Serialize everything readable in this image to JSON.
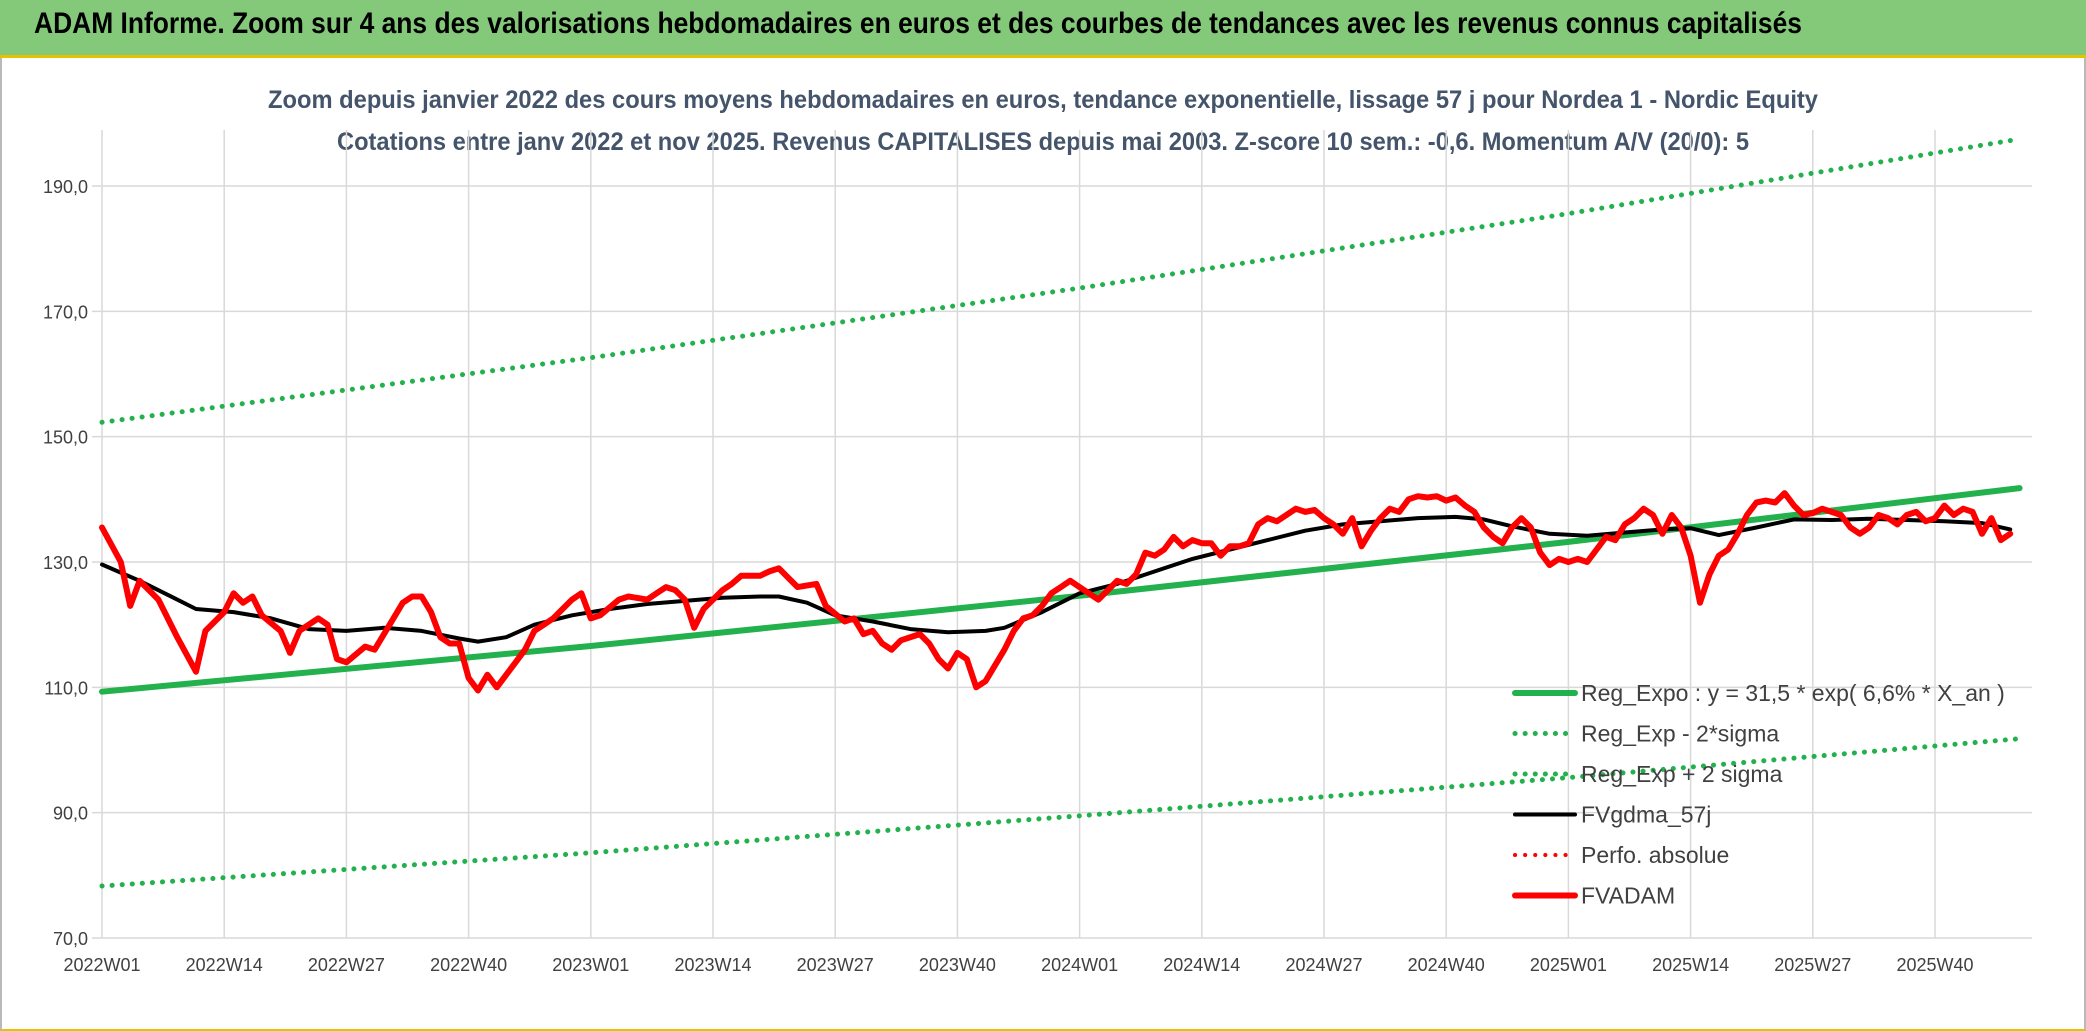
{
  "banner": {
    "title": "ADAM Informe. Zoom sur 4 ans des valorisations hebdomadaires en euros et des courbes de tendances avec les revenus connus capitalisés"
  },
  "chart_data": {
    "type": "line",
    "title": "Zoom depuis janvier 2022 des cours moyens hebdomadaires en euros, tendance exponentielle, lissage 57 j pour Nordea 1 - Nordic Equity",
    "subtitle": "Cotations entre janv 2022 et nov 2025. Revenus CAPITALISES depuis mai 2003. Z-score 10 sem.: -0,6. Momentum A/V (20/0): 5",
    "xlabel": "",
    "ylabel": "",
    "ylim": [
      70,
      200
    ],
    "yticks": [
      "70,0",
      "90,0",
      "110,0",
      "130,0",
      "150,0",
      "170,0",
      "190,0"
    ],
    "ytick_values": [
      70,
      90,
      110,
      130,
      150,
      170,
      190
    ],
    "x_range": [
      1,
      204
    ],
    "xticks": [
      {
        "label": "2022W01",
        "x": 1
      },
      {
        "label": "2022W14",
        "x": 14
      },
      {
        "label": "2022W27",
        "x": 27
      },
      {
        "label": "2022W40",
        "x": 40
      },
      {
        "label": "2023W01",
        "x": 53
      },
      {
        "label": "2023W14",
        "x": 66
      },
      {
        "label": "2023W27",
        "x": 79
      },
      {
        "label": "2023W40",
        "x": 92
      },
      {
        "label": "2024W01",
        "x": 105
      },
      {
        "label": "2024W14",
        "x": 118
      },
      {
        "label": "2024W27",
        "x": 131
      },
      {
        "label": "2024W40",
        "x": 144
      },
      {
        "label": "2025W01",
        "x": 157
      },
      {
        "label": "2025W14",
        "x": 170
      },
      {
        "label": "2025W27",
        "x": 183
      },
      {
        "label": "2025W40",
        "x": 196
      }
    ],
    "grid": true,
    "legend_position": "bottom-right",
    "series": [
      {
        "name": "Reg_Expo : y = 31,5 * exp( 6,6% *  X_an )",
        "color": "#22b14c",
        "style": "solid",
        "width": 6,
        "points": [
          [
            1,
            109.3
          ],
          [
            53,
            116.6
          ],
          [
            105,
            124.6
          ],
          [
            157,
            133.2
          ],
          [
            205,
            141.8
          ]
        ]
      },
      {
        "name": "Reg_Exp - 2*sigma",
        "color": "#22b14c",
        "style": "dotted",
        "width": 5,
        "points": [
          [
            1,
            78.3
          ],
          [
            53,
            83.6
          ],
          [
            105,
            89.5
          ],
          [
            157,
            95.6
          ],
          [
            205,
            101.8
          ]
        ]
      },
      {
        "name": "Reg_Exp + 2 sigma",
        "color": "#22b14c",
        "style": "dotted",
        "width": 5,
        "points": [
          [
            1,
            152.3
          ],
          [
            53,
            162.6
          ],
          [
            105,
            173.7
          ],
          [
            157,
            185.6
          ],
          [
            205,
            197.5
          ]
        ]
      },
      {
        "name": "FVgdma_57j",
        "color": "#000000",
        "style": "solid",
        "width": 4,
        "points": [
          [
            1,
            129.6
          ],
          [
            5,
            127
          ],
          [
            9,
            124
          ],
          [
            11,
            122.5
          ],
          [
            15,
            122
          ],
          [
            19,
            121
          ],
          [
            23,
            119.3
          ],
          [
            27,
            119
          ],
          [
            31,
            119.5
          ],
          [
            35,
            119
          ],
          [
            39,
            117.8
          ],
          [
            41,
            117.3
          ],
          [
            44,
            118
          ],
          [
            47,
            120
          ],
          [
            51,
            121.5
          ],
          [
            55,
            122.5
          ],
          [
            59,
            123.3
          ],
          [
            63,
            123.8
          ],
          [
            67,
            124.3
          ],
          [
            71,
            124.5
          ],
          [
            73,
            124.5
          ],
          [
            76,
            123.5
          ],
          [
            79,
            121.5
          ],
          [
            83,
            120.5
          ],
          [
            87,
            119.3
          ],
          [
            91,
            118.8
          ],
          [
            95,
            119
          ],
          [
            97,
            119.5
          ],
          [
            101,
            122
          ],
          [
            105,
            125
          ],
          [
            109,
            126.5
          ],
          [
            113,
            128.5
          ],
          [
            117,
            130.5
          ],
          [
            121,
            132
          ],
          [
            125,
            133.5
          ],
          [
            129,
            135
          ],
          [
            133,
            136
          ],
          [
            137,
            136.5
          ],
          [
            141,
            137
          ],
          [
            145,
            137.2
          ],
          [
            148,
            136.8
          ],
          [
            151,
            135.7
          ],
          [
            155,
            134.5
          ],
          [
            159,
            134.2
          ],
          [
            163,
            134.7
          ],
          [
            167,
            135.2
          ],
          [
            170,
            135.4
          ],
          [
            173,
            134.3
          ],
          [
            177,
            135.5
          ],
          [
            181,
            136.8
          ],
          [
            185,
            136.7
          ],
          [
            189,
            136.9
          ],
          [
            193,
            136.7
          ],
          [
            197,
            136.5
          ],
          [
            201,
            136.2
          ],
          [
            204,
            135.2
          ]
        ]
      },
      {
        "name": "Perfo. absolue",
        "color": "#ff0000",
        "style": "dotted",
        "width": 4,
        "points": []
      },
      {
        "name": "FVADAM",
        "color": "#ff0000",
        "style": "solid",
        "width": 6,
        "points": [
          [
            1,
            135.5
          ],
          [
            3,
            130
          ],
          [
            4,
            123
          ],
          [
            5,
            127
          ],
          [
            7,
            124
          ],
          [
            9,
            118
          ],
          [
            11,
            112.5
          ],
          [
            12,
            119
          ],
          [
            14,
            122
          ],
          [
            15,
            125
          ],
          [
            16,
            123.5
          ],
          [
            17,
            124.5
          ],
          [
            18,
            121.5
          ],
          [
            20,
            119
          ],
          [
            21,
            115.5
          ],
          [
            22,
            119
          ],
          [
            24,
            121
          ],
          [
            25,
            120
          ],
          [
            26,
            114.5
          ],
          [
            27,
            114
          ],
          [
            29,
            116.5
          ],
          [
            30,
            116
          ],
          [
            32,
            121
          ],
          [
            33,
            123.5
          ],
          [
            34,
            124.5
          ],
          [
            35,
            124.5
          ],
          [
            36,
            122
          ],
          [
            37,
            118
          ],
          [
            38,
            117
          ],
          [
            39,
            117
          ],
          [
            40,
            111.5
          ],
          [
            41,
            109.5
          ],
          [
            42,
            112
          ],
          [
            43,
            110
          ],
          [
            45,
            114
          ],
          [
            46,
            116
          ],
          [
            47,
            119
          ],
          [
            48,
            120
          ],
          [
            49,
            121
          ],
          [
            51,
            124
          ],
          [
            52,
            125
          ],
          [
            53,
            121
          ],
          [
            54,
            121.5
          ],
          [
            56,
            124
          ],
          [
            57,
            124.5
          ],
          [
            59,
            124
          ],
          [
            60,
            125
          ],
          [
            61,
            126
          ],
          [
            62,
            125.5
          ],
          [
            63,
            124
          ],
          [
            64,
            119.5
          ],
          [
            65,
            122.5
          ],
          [
            67,
            125.5
          ],
          [
            68,
            126.5
          ],
          [
            69,
            127.8
          ],
          [
            71,
            127.8
          ],
          [
            72,
            128.5
          ],
          [
            73,
            129
          ],
          [
            74,
            127.5
          ],
          [
            75,
            126
          ],
          [
            77,
            126.5
          ],
          [
            78,
            123
          ],
          [
            80,
            120.5
          ],
          [
            81,
            121
          ],
          [
            82,
            118.5
          ],
          [
            83,
            119
          ],
          [
            84,
            117
          ],
          [
            85,
            116
          ],
          [
            86,
            117.5
          ],
          [
            88,
            118.5
          ],
          [
            89,
            117
          ],
          [
            90,
            114.5
          ],
          [
            91,
            113
          ],
          [
            92,
            115.5
          ],
          [
            93,
            114.5
          ],
          [
            94,
            110
          ],
          [
            95,
            111
          ],
          [
            97,
            116
          ],
          [
            98,
            119
          ],
          [
            99,
            121
          ],
          [
            100,
            121.5
          ],
          [
            101,
            123
          ],
          [
            102,
            125
          ],
          [
            103,
            126
          ],
          [
            104,
            127
          ],
          [
            105,
            126
          ],
          [
            107,
            124
          ],
          [
            108,
            125.5
          ],
          [
            109,
            127
          ],
          [
            110,
            126.5
          ],
          [
            111,
            128
          ],
          [
            112,
            131.5
          ],
          [
            113,
            131
          ],
          [
            114,
            132
          ],
          [
            115,
            134
          ],
          [
            116,
            132.5
          ],
          [
            117,
            133.5
          ],
          [
            118,
            133
          ],
          [
            119,
            133
          ],
          [
            120,
            131
          ],
          [
            121,
            132.5
          ],
          [
            122,
            132.5
          ],
          [
            123,
            133
          ],
          [
            124,
            136
          ],
          [
            125,
            137
          ],
          [
            126,
            136.5
          ],
          [
            127,
            137.5
          ],
          [
            128,
            138.5
          ],
          [
            129,
            138
          ],
          [
            130,
            138.3
          ],
          [
            131,
            137
          ],
          [
            132,
            136
          ],
          [
            133,
            134.5
          ],
          [
            134,
            137
          ],
          [
            135,
            132.5
          ],
          [
            136,
            135
          ],
          [
            137,
            137
          ],
          [
            138,
            138.5
          ],
          [
            139,
            138
          ],
          [
            140,
            140
          ],
          [
            141,
            140.5
          ],
          [
            142,
            140.3
          ],
          [
            143,
            140.5
          ],
          [
            144,
            139.8
          ],
          [
            145,
            140.3
          ],
          [
            146,
            139
          ],
          [
            147,
            138
          ],
          [
            148,
            135.5
          ],
          [
            149,
            134
          ],
          [
            150,
            133
          ],
          [
            151,
            135.5
          ],
          [
            152,
            137
          ],
          [
            153,
            135.5
          ],
          [
            154,
            131.5
          ],
          [
            155,
            129.5
          ],
          [
            156,
            130.5
          ],
          [
            157,
            130
          ],
          [
            158,
            130.5
          ],
          [
            159,
            130
          ],
          [
            160,
            132
          ],
          [
            161,
            134
          ],
          [
            162,
            133.5
          ],
          [
            163,
            136
          ],
          [
            164,
            137
          ],
          [
            165,
            138.5
          ],
          [
            166,
            137.5
          ],
          [
            167,
            134.5
          ],
          [
            168,
            137.5
          ],
          [
            169,
            135.5
          ],
          [
            170,
            131
          ],
          [
            171,
            123.5
          ],
          [
            172,
            128
          ],
          [
            173,
            131
          ],
          [
            174,
            132
          ],
          [
            175,
            134.5
          ],
          [
            176,
            137.5
          ],
          [
            177,
            139.5
          ],
          [
            178,
            139.8
          ],
          [
            179,
            139.5
          ],
          [
            180,
            141
          ],
          [
            181,
            139
          ],
          [
            182,
            137.5
          ],
          [
            183,
            137.8
          ],
          [
            184,
            138.5
          ],
          [
            185,
            138
          ],
          [
            186,
            137.5
          ],
          [
            187,
            135.5
          ],
          [
            188,
            134.5
          ],
          [
            189,
            135.5
          ],
          [
            190,
            137.5
          ],
          [
            191,
            137
          ],
          [
            192,
            136
          ],
          [
            193,
            137.5
          ],
          [
            194,
            138
          ],
          [
            195,
            136.5
          ],
          [
            196,
            137
          ],
          [
            197,
            139
          ],
          [
            198,
            137.5
          ],
          [
            199,
            138.5
          ],
          [
            200,
            138
          ],
          [
            201,
            134.5
          ],
          [
            202,
            137
          ],
          [
            203,
            133.5
          ],
          [
            204,
            134.5
          ]
        ]
      }
    ]
  }
}
